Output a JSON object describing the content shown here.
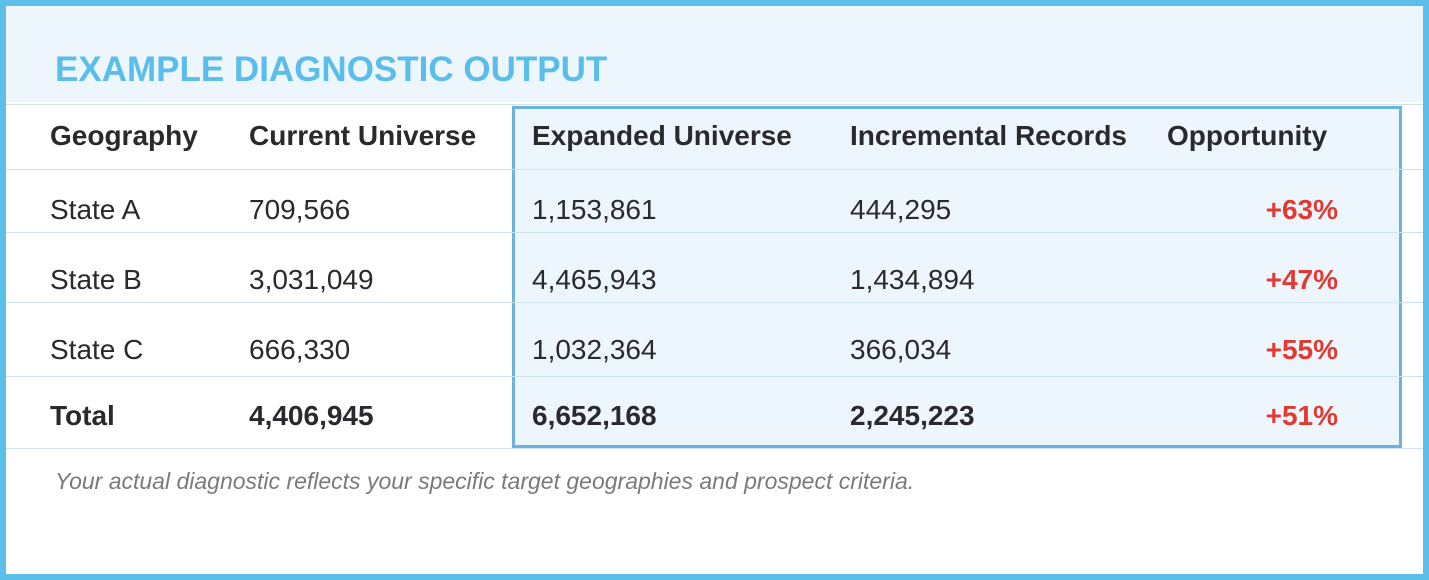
{
  "header": {
    "title": "EXAMPLE DIAGNOSTIC OUTPUT"
  },
  "table": {
    "columns": [
      "Geography",
      "Current Universe",
      "Expanded Universe",
      "Incremental Records",
      "Opportunity"
    ],
    "rows": [
      [
        "State A",
        "709,566",
        "1,153,861",
        "444,295",
        "+63%"
      ],
      [
        "State B",
        "3,031,049",
        "4,465,943",
        "1,434,894",
        "+47%"
      ],
      [
        "State C",
        "666,330",
        "1,032,364",
        "366,034",
        "+55%"
      ],
      [
        "Total",
        "4,406,945",
        "6,652,168",
        "2,245,223",
        "+51%"
      ]
    ]
  },
  "footnote": "Your actual diagnostic reflects your specific target geographies and prospect criteria."
}
